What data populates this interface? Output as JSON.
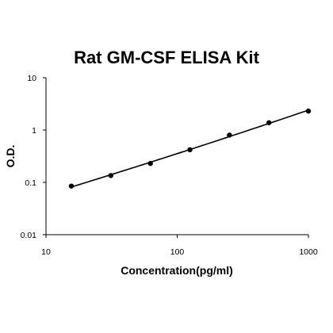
{
  "chart_data": {
    "type": "scatter",
    "title": "Rat GM-CSF ELISA Kit",
    "xlabel": "Concentration(pg/ml)",
    "ylabel": "O.D.",
    "x_scale": "log",
    "y_scale": "log",
    "xlim": [
      10,
      1000
    ],
    "ylim": [
      0.01,
      10
    ],
    "x_ticks": [
      10,
      100,
      1000
    ],
    "x_tick_labels": [
      "10",
      "100",
      "1000"
    ],
    "y_ticks": [
      0.01,
      0.1,
      1,
      10
    ],
    "y_tick_labels": [
      "0.01",
      "0.1",
      "1",
      "10"
    ],
    "grid": false,
    "legend": "none",
    "series": [
      {
        "x": [
          15.6,
          31.2,
          62.5,
          125,
          250,
          500,
          1000
        ],
        "y": [
          0.085,
          0.135,
          0.23,
          0.42,
          0.8,
          1.38,
          2.3
        ],
        "fit_curve": true
      }
    ]
  }
}
